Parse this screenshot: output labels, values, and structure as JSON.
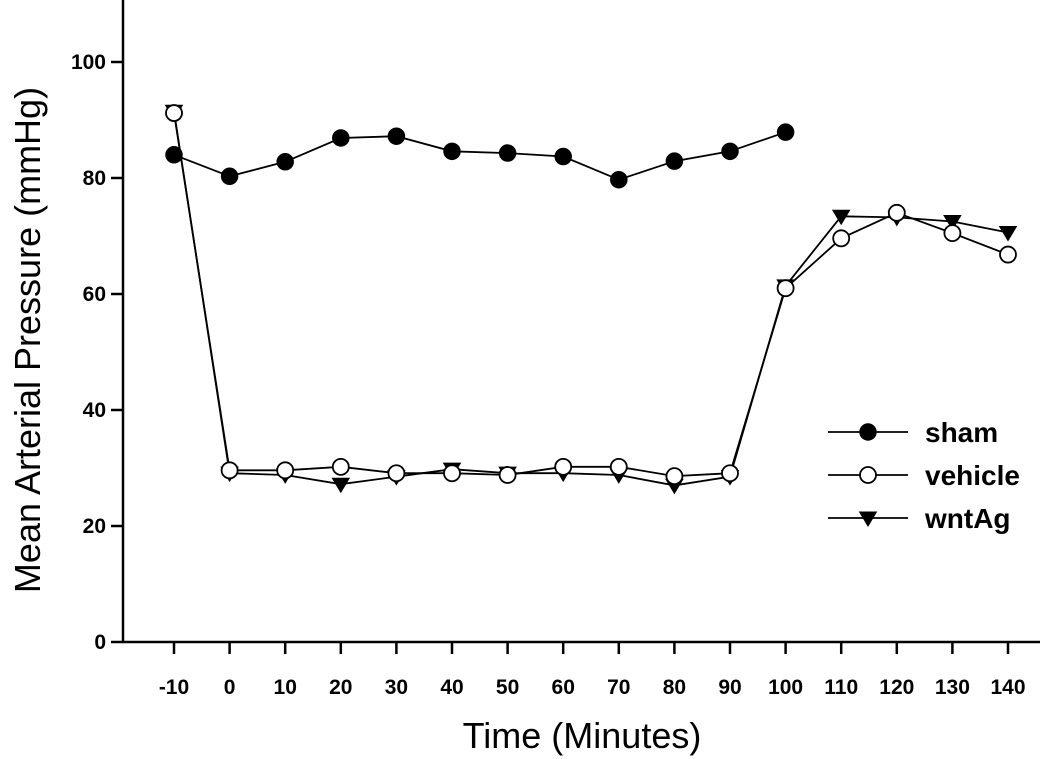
{
  "chart_data": {
    "type": "line",
    "xlabel": "Time (Minutes)",
    "ylabel": "Mean Arterial Pressure (mmHg)",
    "ylim": [
      0,
      110
    ],
    "yticks": [
      "0",
      "20",
      "40",
      "60",
      "80",
      "100"
    ],
    "categories": [
      "-10",
      "0",
      "10",
      "20",
      "30",
      "40",
      "50",
      "60",
      "70",
      "80",
      "90",
      "100",
      "110",
      "120",
      "130",
      "140"
    ],
    "grid": false,
    "legend_position": "right",
    "series": [
      {
        "name": "sham",
        "marker": "filled-circle",
        "values": [
          84,
          80.3,
          82.8,
          86.9,
          87.2,
          84.6,
          84.3,
          83.7,
          79.7,
          82.9,
          84.6,
          87.9,
          null,
          null,
          null,
          null
        ]
      },
      {
        "name": "vehicle",
        "marker": "open-circle",
        "values": [
          91.2,
          29.6,
          29.6,
          30.2,
          29.1,
          29.1,
          28.8,
          30.2,
          30.2,
          28.6,
          29.1,
          61,
          69.6,
          74,
          70.5,
          66.8
        ]
      },
      {
        "name": "wntAg",
        "marker": "filled-triangle-down",
        "values": [
          91.5,
          29.1,
          28.8,
          27.2,
          28.5,
          29.8,
          29.1,
          29.1,
          28.8,
          27,
          28.5,
          61.4,
          73.4,
          73.2,
          72.5,
          70.6
        ]
      }
    ]
  }
}
